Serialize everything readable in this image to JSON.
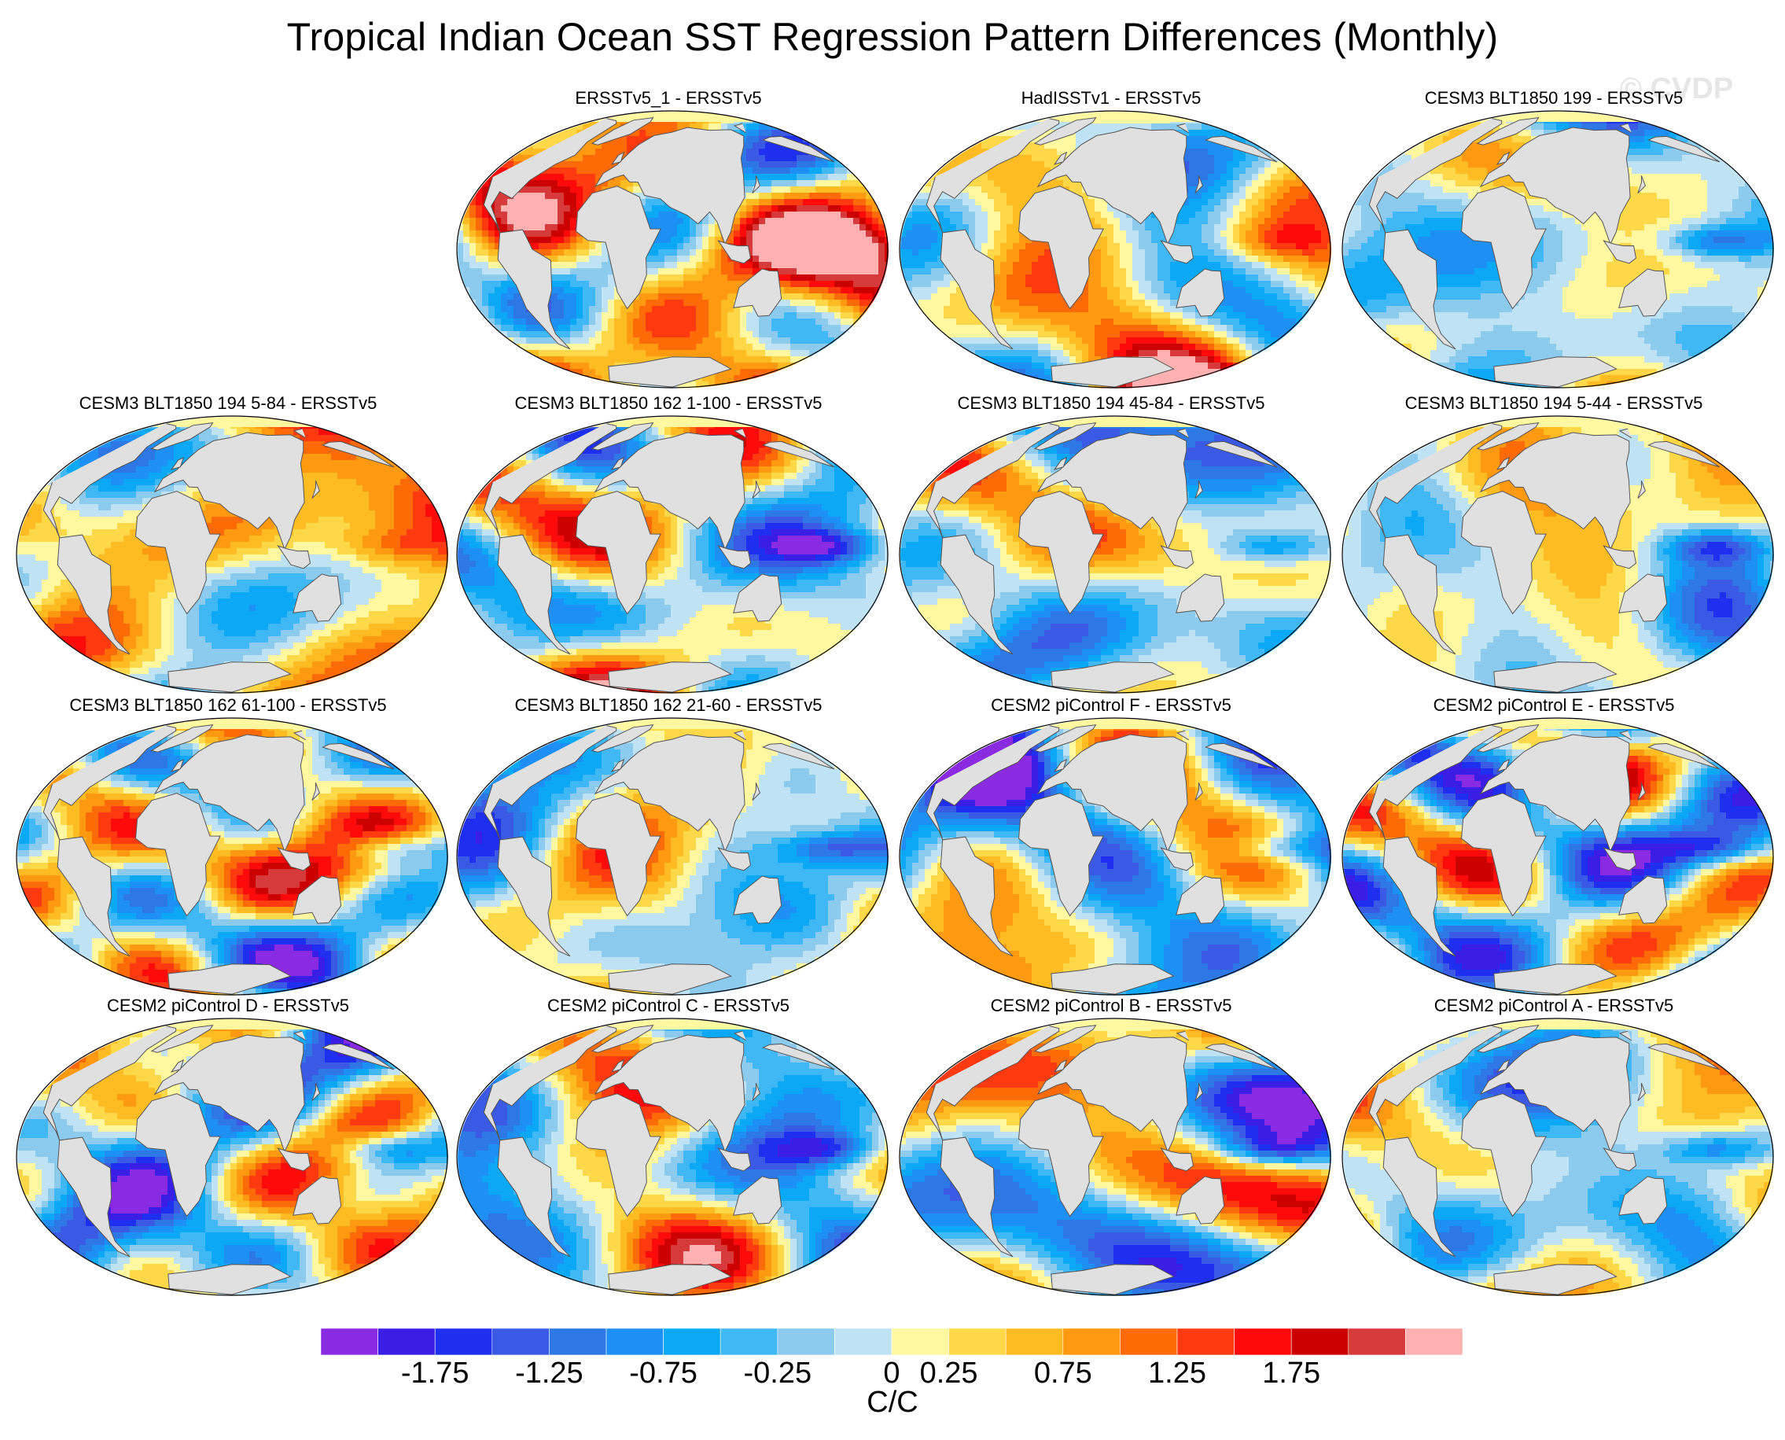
{
  "title": "Tropical Indian Ocean SST Regression Pattern Differences (Monthly)",
  "watermark": "© CVDP",
  "panels": [
    {
      "title": "ERSSTv5_1 - ERSSTv5",
      "bias": 0.55,
      "seed": 11
    },
    {
      "title": "HadISSTv1 - ERSSTv5",
      "bias": 0.25,
      "seed": 23
    },
    {
      "title": "CESM3 BLT1850 199 - ERSSTv5",
      "bias": -0.25,
      "seed": 37
    },
    {
      "title": "CESM3 BLT1850 194 5-84 - ERSSTv5",
      "bias": 0.45,
      "seed": 41
    },
    {
      "title": "CESM3 BLT1850 162 1-100 - ERSSTv5",
      "bias": 0.05,
      "seed": 53
    },
    {
      "title": "CESM3 BLT1850 194 45-84 - ERSSTv5",
      "bias": -0.2,
      "seed": 67
    },
    {
      "title": "CESM3 BLT1850 194 5-44 - ERSSTv5",
      "bias": 0.1,
      "seed": 71
    },
    {
      "title": "CESM3 BLT1850 162 61-100 - ERSSTv5",
      "bias": 0.1,
      "seed": 83
    },
    {
      "title": "CESM3 BLT1850 162 21-60 - ERSSTv5",
      "bias": -0.05,
      "seed": 97
    },
    {
      "title": "CESM2 piControl F - ERSSTv5",
      "bias": -0.3,
      "seed": 101
    },
    {
      "title": "CESM2 piControl E - ERSSTv5",
      "bias": -0.25,
      "seed": 113
    },
    {
      "title": "CESM2 piControl D - ERSSTv5",
      "bias": -0.2,
      "seed": 127
    },
    {
      "title": "CESM2 piControl C - ERSSTv5",
      "bias": -0.1,
      "seed": 131
    },
    {
      "title": "CESM2 piControl B - ERSSTv5",
      "bias": -0.15,
      "seed": 149
    },
    {
      "title": "CESM2 piControl A - ERSSTv5",
      "bias": -0.1,
      "seed": 157
    }
  ],
  "colorbar": {
    "colors": [
      "#8a2be2",
      "#3a1ee6",
      "#1f2ff0",
      "#3a5ae6",
      "#2e78e6",
      "#1e90f5",
      "#0aa8f5",
      "#3fb8f5",
      "#8ccaee",
      "#bfe3f5",
      "#fff8a0",
      "#ffd84a",
      "#ffbb22",
      "#ff9a10",
      "#ff6a08",
      "#ff3a10",
      "#ff0a0a",
      "#cc0000",
      "#d63a3a",
      "#ffb0b0"
    ],
    "tick_labels": [
      "-1.75",
      "-1.25",
      "-0.75",
      "-0.25",
      "0",
      "0.25",
      "0.75",
      "1.25",
      "1.75"
    ],
    "units": "C/C"
  },
  "map": {
    "ocean_base": "#ffffff",
    "land_color": "#e0e0e0",
    "coast_color": "#555555"
  }
}
